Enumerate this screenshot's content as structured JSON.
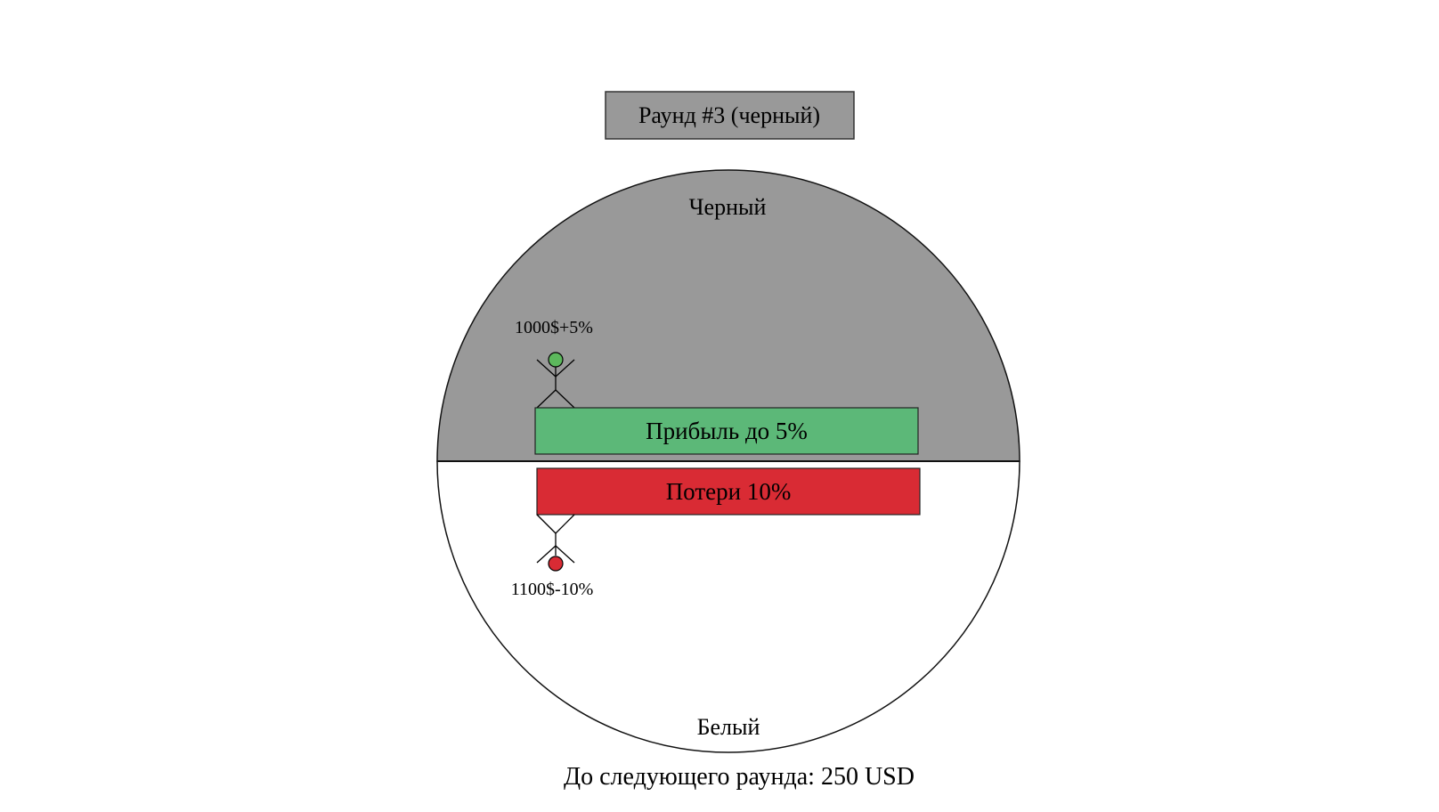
{
  "round_label": "Раунд #3 (черный)",
  "top_half": {
    "label": "Черный",
    "color": "#999999"
  },
  "bottom_half": {
    "label": "Белый",
    "color": "#ffffff"
  },
  "profit_bar": {
    "label": "Прибыль до 5%",
    "color": "#5cb878"
  },
  "loss_bar": {
    "label": "Потери 10%",
    "color": "#d92b34"
  },
  "winner_figure": {
    "label": "1000$+5%",
    "head_color": "#5cb85c"
  },
  "loser_figure": {
    "label": "1100$-10%",
    "head_color": "#d92b34"
  },
  "footer": "До следующего раунда: 250 USD"
}
